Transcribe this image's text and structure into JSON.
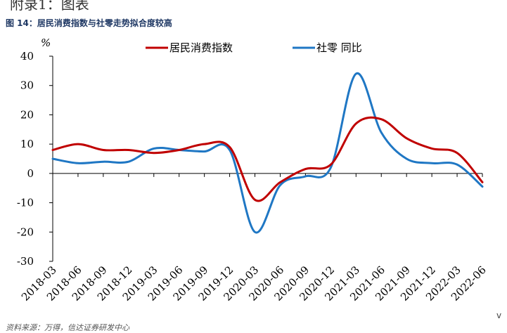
{
  "page": {
    "top_heading": "附录1：图表",
    "figure_title": "图 14：居民消费指数与社零走势拟合度较高",
    "source": "资料来源：万得，信达证券研发中心",
    "edge_mark": "v"
  },
  "chart_data": {
    "type": "line",
    "ylabel": "%",
    "ylim": [
      -30,
      40
    ],
    "yticks": [
      -30,
      -20,
      -10,
      0,
      10,
      20,
      30,
      40
    ],
    "x": [
      "2018-03",
      "2018-06",
      "2018-09",
      "2018-12",
      "2019-03",
      "2019-06",
      "2019-09",
      "2019-12",
      "2020-03",
      "2020-06",
      "2020-09",
      "2020-12",
      "2021-03",
      "2021-06",
      "2021-09",
      "2021-12",
      "2022-03",
      "2022-06"
    ],
    "legend_position": "top",
    "grid": false,
    "series": [
      {
        "name": "居民消费指数",
        "color": "#c00000",
        "values": [
          8,
          10,
          8,
          8,
          7,
          8,
          10,
          9,
          -9,
          -3,
          1.5,
          3,
          17,
          18.5,
          12,
          8.5,
          7,
          -3
        ]
      },
      {
        "name": "社零 同比",
        "color": "#1f77c4",
        "values": [
          5,
          3.5,
          4,
          4,
          8.5,
          8,
          7.5,
          8,
          -20,
          -4,
          -1,
          2,
          34,
          14,
          5,
          3.5,
          3,
          -4.5
        ]
      }
    ]
  }
}
